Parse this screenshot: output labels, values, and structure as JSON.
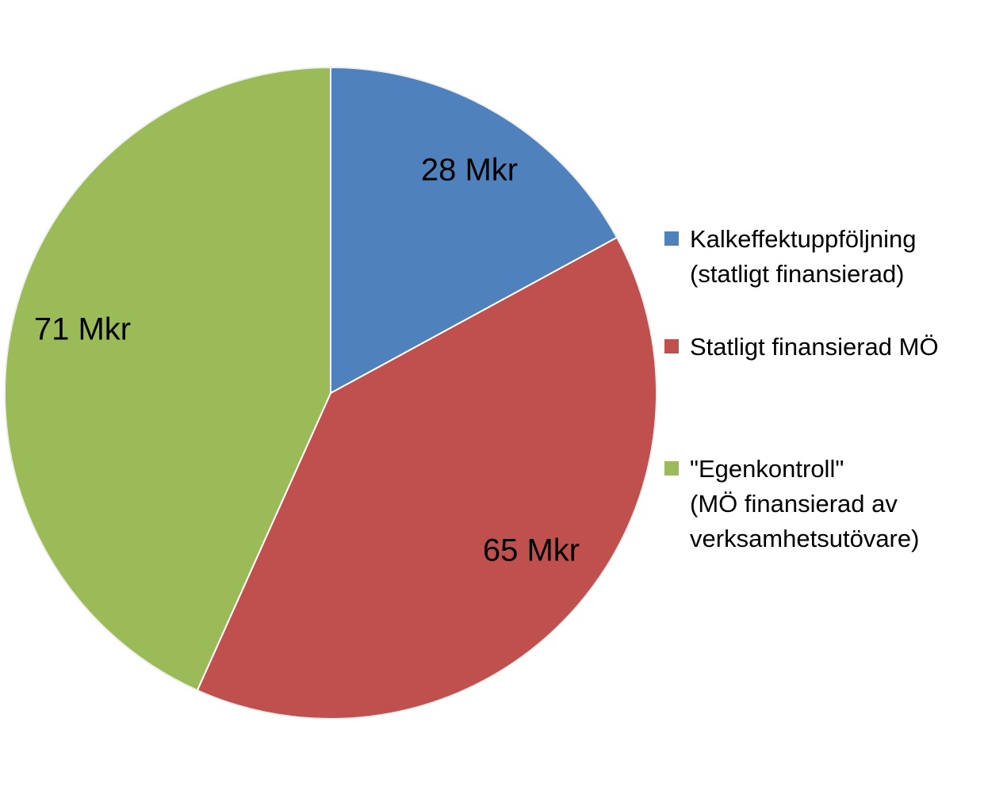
{
  "chart_data": {
    "type": "pie",
    "title": "",
    "slices": [
      {
        "name": "Kalkeffektuppföljning\n(statligt finansierad)",
        "value": 28,
        "label": "28 Mkr",
        "color": "#4F81BD"
      },
      {
        "name": "Statligt finansierad MÖ",
        "value": 65,
        "label": "65 Mkr",
        "color": "#C0504D"
      },
      {
        "name": "\"Egenkontroll\"\n(MÖ finansierad av\nverksamhetsutövare)",
        "value": 71,
        "label": "71 Mkr",
        "color": "#9BBB59"
      }
    ],
    "legend_position": "right"
  }
}
